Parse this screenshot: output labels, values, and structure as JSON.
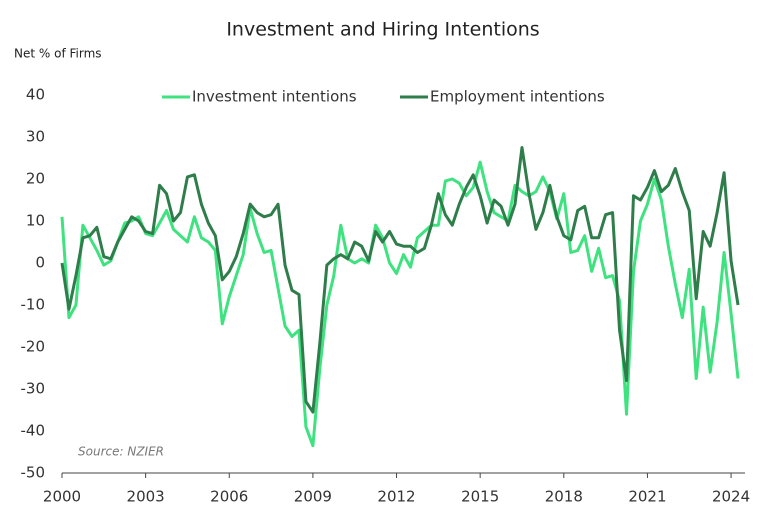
{
  "chart_data": {
    "type": "line",
    "title": "Investment and Hiring Intentions",
    "y_label": "Net % of Firms",
    "annotation": "Source: NZIER",
    "legend": "top",
    "xlim": [
      2000,
      2024.5
    ],
    "xticks": [
      2000,
      2003,
      2006,
      2009,
      2012,
      2015,
      2018,
      2021,
      2024
    ],
    "ylim": [
      -50,
      40
    ],
    "yticks": [
      -50,
      -40,
      -30,
      -20,
      -10,
      0,
      10,
      20,
      30,
      40
    ],
    "grid": false,
    "x": [
      2000,
      2000.25,
      2000.5,
      2000.75,
      2001,
      2001.25,
      2001.5,
      2001.75,
      2002,
      2002.25,
      2002.5,
      2002.75,
      2003,
      2003.25,
      2003.5,
      2003.75,
      2004,
      2004.25,
      2004.5,
      2004.75,
      2005,
      2005.25,
      2005.5,
      2005.75,
      2006,
      2006.25,
      2006.5,
      2006.75,
      2007,
      2007.25,
      2007.5,
      2007.75,
      2008,
      2008.25,
      2008.5,
      2008.75,
      2009,
      2009.25,
      2009.5,
      2009.75,
      2010,
      2010.25,
      2010.5,
      2010.75,
      2011,
      2011.25,
      2011.5,
      2011.75,
      2012,
      2012.25,
      2012.5,
      2012.75,
      2013,
      2013.25,
      2013.5,
      2013.75,
      2014,
      2014.25,
      2014.5,
      2014.75,
      2015,
      2015.25,
      2015.5,
      2015.75,
      2016,
      2016.25,
      2016.5,
      2016.75,
      2017,
      2017.25,
      2017.5,
      2017.75,
      2018,
      2018.25,
      2018.5,
      2018.75,
      2019,
      2019.25,
      2019.5,
      2019.75,
      2020,
      2020.25,
      2020.5,
      2020.75,
      2021,
      2021.25,
      2021.5,
      2021.75,
      2022,
      2022.25,
      2022.5,
      2022.75,
      2023,
      2023.25,
      2023.5,
      2023.75,
      2024,
      2024.25
    ],
    "series": [
      {
        "name": "Investment intentions",
        "color": "#3ee27f",
        "values": [
          11,
          -13,
          -10,
          9,
          6,
          3,
          -0.5,
          0.5,
          5,
          9.5,
          10,
          11,
          7,
          6.5,
          9.5,
          12.5,
          8,
          6.5,
          5,
          11,
          6,
          5,
          3,
          -14.5,
          -8,
          -3,
          2,
          13,
          7,
          2.5,
          3,
          -6,
          -15,
          -17.5,
          -16,
          -39,
          -43.5,
          -25,
          -10,
          -3,
          9,
          1,
          0,
          1,
          0,
          9,
          6,
          0,
          -2.5,
          2,
          -1,
          6,
          7.5,
          9,
          9,
          19.5,
          20,
          19,
          16,
          18,
          24,
          17,
          12,
          11,
          10,
          18.5,
          17,
          16,
          17,
          20.5,
          17,
          10.5,
          16.5,
          2.5,
          3,
          6.5,
          -2,
          3.5,
          -3.5,
          -3,
          -9,
          -36,
          -2,
          10,
          14,
          20,
          15,
          4,
          -5,
          -13,
          -1.5,
          -27.5,
          -10.5,
          -26,
          -14,
          2.5,
          -12,
          -27.5
        ]
      },
      {
        "name": "Employment intentions",
        "color": "#2e7d4a",
        "values": [
          0,
          -11,
          -3,
          6,
          6.5,
          8.5,
          1.5,
          1,
          5,
          8,
          11,
          10,
          7.5,
          7,
          18.5,
          16.5,
          10,
          12,
          20.5,
          21,
          14,
          9.5,
          6.5,
          -4,
          -2,
          1.5,
          7,
          14,
          12,
          11,
          11.5,
          14,
          -0.5,
          -6.5,
          -7.5,
          -33,
          -35.5,
          -19,
          -0.5,
          1,
          2,
          1,
          5,
          4,
          0.5,
          7.5,
          5,
          7.5,
          4.5,
          4,
          4,
          2.5,
          3.5,
          9,
          16.5,
          11.5,
          9,
          14,
          18,
          21,
          16,
          9.5,
          15,
          13.5,
          9,
          14,
          27.5,
          16.5,
          8,
          12,
          18.5,
          11,
          6.5,
          5.5,
          12.5,
          13.5,
          6,
          6,
          11.5,
          12,
          -16,
          -28,
          16,
          15,
          18,
          22,
          17,
          18.5,
          22.5,
          17,
          12.5,
          -8.5,
          7.5,
          4,
          12,
          21.5,
          0.5,
          -10
        ]
      }
    ]
  }
}
